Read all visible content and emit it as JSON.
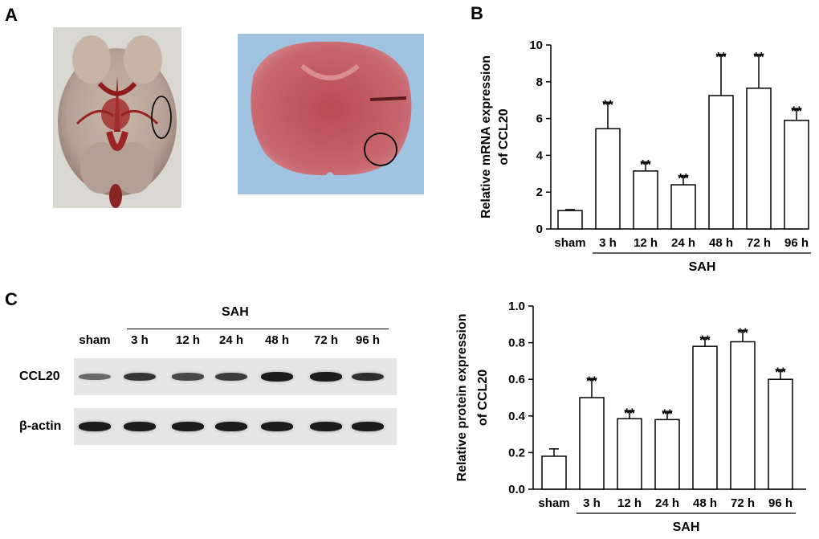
{
  "panels": {
    "a": "A",
    "b": "B",
    "c": "C"
  },
  "western_blot": {
    "group_label": "SAH",
    "lanes": [
      "sham",
      "3 h",
      "12 h",
      "24 h",
      "48 h",
      "72 h",
      "96 h"
    ],
    "rows": [
      {
        "label": "CCL20",
        "intensity": [
          0.35,
          0.75,
          0.6,
          0.7,
          0.95,
          0.95,
          0.8
        ]
      },
      {
        "label": "β-actin",
        "intensity": [
          0.95,
          0.95,
          0.95,
          0.95,
          0.95,
          0.95,
          0.95
        ]
      }
    ]
  },
  "chart_data": [
    {
      "type": "bar",
      "panel": "B",
      "categories": [
        "sham",
        "3 h",
        "12 h",
        "24 h",
        "48 h",
        "72 h",
        "96 h"
      ],
      "values": [
        1.0,
        5.45,
        3.15,
        2.4,
        7.25,
        7.65,
        5.9
      ],
      "errors": [
        0.05,
        1.4,
        0.45,
        0.45,
        2.2,
        1.8,
        0.6
      ],
      "significance": [
        "",
        "**",
        "**",
        "**",
        "**",
        "**",
        "**"
      ],
      "ylabel_line1": "Relative mRNA expression",
      "ylabel_line2": "of CCL20",
      "group_label": "SAH",
      "yticks": [
        "0",
        "2",
        "4",
        "6",
        "8",
        "10"
      ],
      "ylim": [
        0,
        10
      ]
    },
    {
      "type": "bar",
      "panel": "C",
      "categories": [
        "sham",
        "3 h",
        "12 h",
        "24 h",
        "48 h",
        "72 h",
        "96 h"
      ],
      "values": [
        0.18,
        0.5,
        0.385,
        0.38,
        0.78,
        0.805,
        0.6
      ],
      "errors": [
        0.04,
        0.1,
        0.04,
        0.04,
        0.045,
        0.06,
        0.05
      ],
      "significance": [
        "",
        "**",
        "**",
        "**",
        "**",
        "**",
        "**"
      ],
      "ylabel_line1": "Relative protein expression",
      "ylabel_line2": "of CCL20",
      "group_label": "SAH",
      "yticks": [
        "0.0",
        "0.2",
        "0.4",
        "0.6",
        "0.8",
        "1.0"
      ],
      "ylim": [
        0,
        1
      ]
    }
  ]
}
